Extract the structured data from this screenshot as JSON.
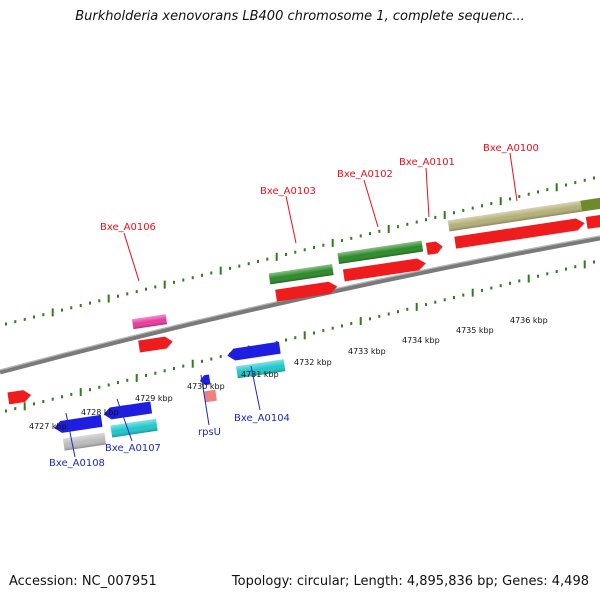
{
  "title": "Burkholderia xenovorans LB400 chromosome 1, complete sequenc...",
  "footer": {
    "accession": "Accession: NC_007951",
    "summary": "Topology: circular; Length: 4,895,836 bp; Genes: 4,498"
  },
  "colors": {
    "backbone": "#7a7a7a",
    "tick": "#2e7d1a",
    "red_label": "#e8101a",
    "blue_label": "#1c28c8"
  },
  "scale": {
    "unit": "kbp",
    "labels": [
      "4727 kbp",
      "4728 kbp",
      "4729 kbp",
      "4730 kbp",
      "4731 kbp",
      "4732 kbp",
      "4733 kbp",
      "4734 kbp",
      "4735 kbp",
      "4736 kbp"
    ]
  },
  "upper_genes": [
    {
      "label": "Bxe_A0106"
    },
    {
      "label": "Bxe_A0103"
    },
    {
      "label": "Bxe_A0102"
    },
    {
      "label": "Bxe_A0101"
    },
    {
      "label": "Bxe_A0100"
    }
  ],
  "lower_genes": [
    {
      "label": "Bxe_A0108"
    },
    {
      "label": "Bxe_A0107"
    },
    {
      "label": "rpsU"
    },
    {
      "label": "Bxe_A0104"
    }
  ],
  "feature_colors": {
    "cds_forward": "#ee1c1c",
    "gene_forward": "#2a8a28",
    "gene_forward_alt": "#b4b078",
    "cds_reverse": "#1e1ee0",
    "gene_reverse": "#1ec8cc",
    "rna_gene": "#bcbcbc",
    "misc_feature": "#e83aa0",
    "pseudo": "#f08080"
  }
}
